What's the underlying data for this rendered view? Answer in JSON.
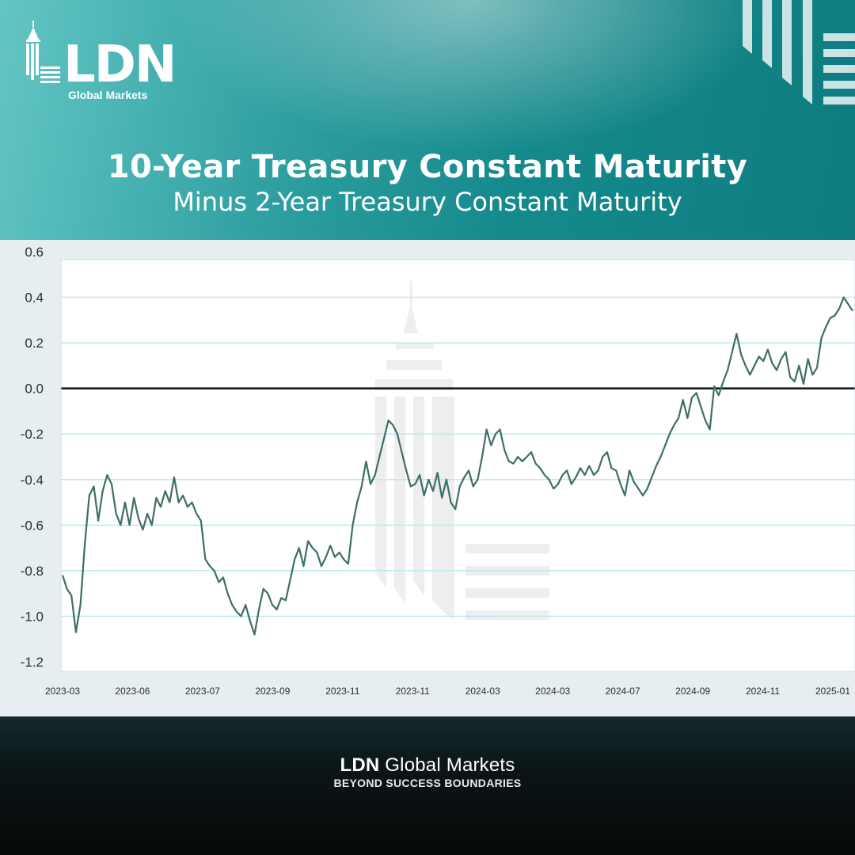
{
  "brand": {
    "logo_text": "LDN",
    "logo_subtext": "Global Markets",
    "footer_brand_bold": "LDN",
    "footer_brand_rest": " Global Markets",
    "footer_tagline": "BEYOND SUCCESS BOUNDARIES"
  },
  "colors": {
    "header_teal": "#158a8c",
    "series_line": "#3d6e68",
    "zero_line": "#0d1517",
    "grid": "#bfe7f0",
    "chart_panel": "#e7eef2"
  },
  "chart_data": {
    "type": "line",
    "title": "10-Year Treasury Constant Maturity",
    "subtitle": "Minus 2-Year Treasury Constant Maturity",
    "xlabel": "",
    "ylabel": "",
    "ylim": [
      -1.2,
      0.6
    ],
    "yticks": [
      0.6,
      0.4,
      0.2,
      0.0,
      -0.2,
      -0.4,
      -0.6,
      -0.8,
      -1.0,
      -1.2
    ],
    "ytick_labels": [
      "0.6",
      "0.4",
      "0.2",
      "0.0",
      "-0.2",
      "-0.4",
      "-0.6",
      "-0.8",
      "-1.0",
      "-1.2"
    ],
    "xtick_labels": [
      "2023-03",
      "2023-06",
      "2023-07",
      "2023-09",
      "2023-11",
      "2023-11",
      "2024-03",
      "2024-03",
      "2024-07",
      "2024-09",
      "2024-11",
      "2025-01"
    ],
    "grid": "horizontal",
    "reference_line": 0.0,
    "series": [
      {
        "values": [
          -0.82,
          -0.88,
          -0.91,
          -1.07,
          -0.95,
          -0.68,
          -0.47,
          -0.43,
          -0.58,
          -0.45,
          -0.38,
          -0.42,
          -0.55,
          -0.6,
          -0.5,
          -0.6,
          -0.48,
          -0.57,
          -0.62,
          -0.55,
          -0.6,
          -0.48,
          -0.52,
          -0.45,
          -0.5,
          -0.39,
          -0.5,
          -0.47,
          -0.52,
          -0.5,
          -0.55,
          -0.58,
          -0.75,
          -0.78,
          -0.8,
          -0.85,
          -0.83,
          -0.9,
          -0.95,
          -0.98,
          -1.0,
          -0.95,
          -1.02,
          -1.08,
          -0.97,
          -0.88,
          -0.9,
          -0.95,
          -0.97,
          -0.92,
          -0.93,
          -0.84,
          -0.75,
          -0.7,
          -0.78,
          -0.67,
          -0.7,
          -0.72,
          -0.78,
          -0.74,
          -0.69,
          -0.74,
          -0.72,
          -0.75,
          -0.77,
          -0.6,
          -0.5,
          -0.43,
          -0.32,
          -0.42,
          -0.38,
          -0.3,
          -0.22,
          -0.14,
          -0.16,
          -0.2,
          -0.28,
          -0.36,
          -0.43,
          -0.42,
          -0.38,
          -0.47,
          -0.4,
          -0.45,
          -0.37,
          -0.48,
          -0.4,
          -0.5,
          -0.53,
          -0.43,
          -0.39,
          -0.36,
          -0.43,
          -0.4,
          -0.3,
          -0.18,
          -0.25,
          -0.2,
          -0.18,
          -0.27,
          -0.32,
          -0.33,
          -0.3,
          -0.32,
          -0.3,
          -0.28,
          -0.33,
          -0.35,
          -0.38,
          -0.4,
          -0.44,
          -0.42,
          -0.38,
          -0.36,
          -0.42,
          -0.39,
          -0.35,
          -0.38,
          -0.34,
          -0.38,
          -0.36,
          -0.3,
          -0.28,
          -0.35,
          -0.36,
          -0.42,
          -0.47,
          -0.36,
          -0.41,
          -0.44,
          -0.47,
          -0.44,
          -0.39,
          -0.34,
          -0.3,
          -0.25,
          -0.2,
          -0.16,
          -0.13,
          -0.05,
          -0.13,
          -0.04,
          -0.02,
          -0.08,
          -0.14,
          -0.18,
          0.01,
          -0.03,
          0.03,
          0.08,
          0.16,
          0.24,
          0.15,
          0.1,
          0.06,
          0.1,
          0.14,
          0.12,
          0.17,
          0.11,
          0.08,
          0.13,
          0.16,
          0.05,
          0.03,
          0.1,
          0.02,
          0.13,
          0.06,
          0.09,
          0.22,
          0.27,
          0.31,
          0.32,
          0.35,
          0.4,
          0.37,
          0.34
        ]
      }
    ]
  }
}
